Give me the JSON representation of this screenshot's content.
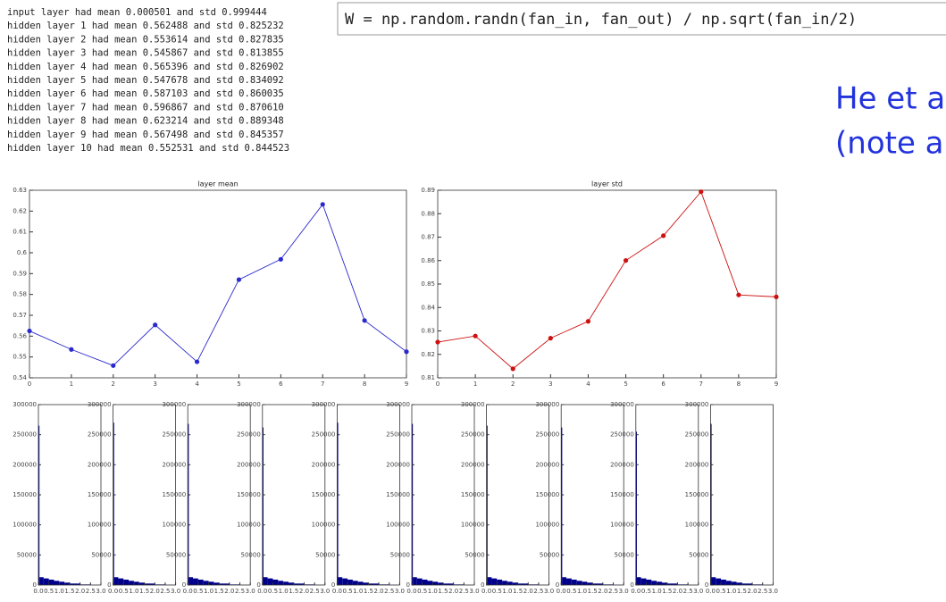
{
  "log": [
    "input layer had mean 0.000501 and std 0.999444",
    "hidden layer 1 had mean 0.562488 and std 0.825232",
    "hidden layer 2 had mean 0.553614 and std 0.827835",
    "hidden layer 3 had mean 0.545867 and std 0.813855",
    "hidden layer 4 had mean 0.565396 and std 0.826902",
    "hidden layer 5 had mean 0.547678 and std 0.834092",
    "hidden layer 6 had mean 0.587103 and std 0.860035",
    "hidden layer 7 had mean 0.596867 and std 0.870610",
    "hidden layer 8 had mean 0.623214 and std 0.889348",
    "hidden layer 9 had mean 0.567498 and std 0.845357",
    "hidden layer 10 had mean 0.552531 and std 0.844523"
  ],
  "code": "W = np.random.randn(fan_in, fan_out) / np.sqrt(fan_in/2)",
  "note": [
    "He et a",
    "(note a"
  ],
  "chart_data": [
    {
      "type": "line",
      "title": "layer mean",
      "x": [
        0,
        1,
        2,
        3,
        4,
        5,
        6,
        7,
        8,
        9
      ],
      "values": [
        0.562488,
        0.553614,
        0.545867,
        0.565396,
        0.547678,
        0.587103,
        0.596867,
        0.623214,
        0.567498,
        0.552531
      ],
      "color": "#2a2acc",
      "xlim": [
        0,
        9
      ],
      "xticks": [
        0,
        1,
        2,
        3,
        4,
        5,
        6,
        7,
        8,
        9
      ],
      "ylim": [
        0.54,
        0.63
      ],
      "yticks": [
        0.54,
        0.55,
        0.56,
        0.57,
        0.58,
        0.59,
        0.6,
        0.61,
        0.62,
        0.63
      ]
    },
    {
      "type": "line",
      "title": "layer std",
      "x": [
        0,
        1,
        2,
        3,
        4,
        5,
        6,
        7,
        8,
        9
      ],
      "values": [
        0.825232,
        0.827835,
        0.813855,
        0.826902,
        0.834092,
        0.860035,
        0.87061,
        0.889348,
        0.845357,
        0.844523
      ],
      "color": "#cc1111",
      "xlim": [
        0,
        9
      ],
      "xticks": [
        0,
        1,
        2,
        3,
        4,
        5,
        6,
        7,
        8,
        9
      ],
      "ylim": [
        0.81,
        0.89
      ],
      "yticks": [
        0.81,
        0.82,
        0.83,
        0.84,
        0.85,
        0.86,
        0.87,
        0.88,
        0.89
      ]
    },
    {
      "type": "histogram",
      "color": "#00008b",
      "bins": [
        0,
        0.05,
        0.25,
        0.5,
        0.75,
        1,
        1.25,
        1.5,
        2,
        2.5,
        3
      ],
      "values": [
        265000,
        13000,
        11000,
        9000,
        7000,
        5500,
        4000,
        2500,
        1000,
        300
      ],
      "xlim": [
        0,
        3
      ],
      "xticks": [
        {
          "value": 0,
          "label": "0.0"
        },
        {
          "value": 0.5,
          "label": "0.5"
        },
        {
          "value": 1,
          "label": "1.0"
        },
        {
          "value": 1.5,
          "label": "1.5"
        },
        {
          "value": 2,
          "label": "2.0"
        },
        {
          "value": 2.5,
          "label": "2.5"
        },
        {
          "value": 3,
          "label": "3.0"
        }
      ],
      "ylim": [
        0,
        300000
      ],
      "yticks": [
        0,
        50000,
        100000,
        150000,
        200000,
        250000,
        300000
      ]
    },
    {
      "type": "histogram",
      "color": "#00008b",
      "bins": [
        0,
        0.05,
        0.25,
        0.5,
        0.75,
        1,
        1.25,
        1.5,
        2,
        2.5,
        3
      ],
      "values": [
        270000,
        13000,
        11000,
        9000,
        7000,
        5500,
        4000,
        2500,
        1000,
        300
      ],
      "xlim": [
        0,
        3
      ],
      "xticks": [
        {
          "value": 0,
          "label": "0.0"
        },
        {
          "value": 0.5,
          "label": "0.5"
        },
        {
          "value": 1,
          "label": "1.0"
        },
        {
          "value": 1.5,
          "label": "1.5"
        },
        {
          "value": 2,
          "label": "2.0"
        },
        {
          "value": 2.5,
          "label": "2.5"
        },
        {
          "value": 3,
          "label": "3.0"
        }
      ],
      "ylim": [
        0,
        300000
      ],
      "yticks": [
        0,
        50000,
        100000,
        150000,
        200000,
        250000,
        300000
      ]
    },
    {
      "type": "histogram",
      "color": "#00008b",
      "bins": [
        0,
        0.05,
        0.25,
        0.5,
        0.75,
        1,
        1.25,
        1.5,
        2,
        2.5,
        3
      ],
      "values": [
        268000,
        13000,
        11000,
        9000,
        7000,
        5500,
        4000,
        2500,
        1000,
        300
      ],
      "xlim": [
        0,
        3
      ],
      "xticks": [
        {
          "value": 0,
          "label": "0.0"
        },
        {
          "value": 0.5,
          "label": "0.5"
        },
        {
          "value": 1,
          "label": "1.0"
        },
        {
          "value": 1.5,
          "label": "1.5"
        },
        {
          "value": 2,
          "label": "2.0"
        },
        {
          "value": 2.5,
          "label": "2.5"
        },
        {
          "value": 3,
          "label": "3.0"
        }
      ],
      "ylim": [
        0,
        300000
      ],
      "yticks": [
        0,
        50000,
        100000,
        150000,
        200000,
        250000,
        300000
      ]
    },
    {
      "type": "histogram",
      "color": "#00008b",
      "bins": [
        0,
        0.05,
        0.25,
        0.5,
        0.75,
        1,
        1.25,
        1.5,
        2,
        2.5,
        3
      ],
      "values": [
        262000,
        13000,
        11000,
        9000,
        7000,
        5500,
        4000,
        2500,
        1000,
        300
      ],
      "xlim": [
        0,
        3
      ],
      "xticks": [
        {
          "value": 0,
          "label": "0.0"
        },
        {
          "value": 0.5,
          "label": "0.5"
        },
        {
          "value": 1,
          "label": "1.0"
        },
        {
          "value": 1.5,
          "label": "1.5"
        },
        {
          "value": 2,
          "label": "2.0"
        },
        {
          "value": 2.5,
          "label": "2.5"
        },
        {
          "value": 3,
          "label": "3.0"
        }
      ],
      "ylim": [
        0,
        300000
      ],
      "yticks": [
        0,
        50000,
        100000,
        150000,
        200000,
        250000,
        300000
      ]
    },
    {
      "type": "histogram",
      "color": "#00008b",
      "bins": [
        0,
        0.05,
        0.25,
        0.5,
        0.75,
        1,
        1.25,
        1.5,
        2,
        2.5,
        3
      ],
      "values": [
        270000,
        13000,
        11000,
        9000,
        7000,
        5500,
        4000,
        2500,
        1000,
        300
      ],
      "xlim": [
        0,
        3
      ],
      "xticks": [
        {
          "value": 0,
          "label": "0.0"
        },
        {
          "value": 0.5,
          "label": "0.5"
        },
        {
          "value": 1,
          "label": "1.0"
        },
        {
          "value": 1.5,
          "label": "1.5"
        },
        {
          "value": 2,
          "label": "2.0"
        },
        {
          "value": 2.5,
          "label": "2.5"
        },
        {
          "value": 3,
          "label": "3.0"
        }
      ],
      "ylim": [
        0,
        300000
      ],
      "yticks": [
        0,
        50000,
        100000,
        150000,
        200000,
        250000,
        300000
      ]
    },
    {
      "type": "histogram",
      "color": "#00008b",
      "bins": [
        0,
        0.05,
        0.25,
        0.5,
        0.75,
        1,
        1.25,
        1.5,
        2,
        2.5,
        3
      ],
      "values": [
        268000,
        13000,
        11000,
        9000,
        7000,
        5500,
        4000,
        2500,
        1000,
        300
      ],
      "xlim": [
        0,
        3
      ],
      "xticks": [
        {
          "value": 0,
          "label": "0.0"
        },
        {
          "value": 0.5,
          "label": "0.5"
        },
        {
          "value": 1,
          "label": "1.0"
        },
        {
          "value": 1.5,
          "label": "1.5"
        },
        {
          "value": 2,
          "label": "2.0"
        },
        {
          "value": 2.5,
          "label": "2.5"
        },
        {
          "value": 3,
          "label": "3.0"
        }
      ],
      "ylim": [
        0,
        300000
      ],
      "yticks": [
        0,
        50000,
        100000,
        150000,
        200000,
        250000,
        300000
      ]
    },
    {
      "type": "histogram",
      "color": "#00008b",
      "bins": [
        0,
        0.05,
        0.25,
        0.5,
        0.75,
        1,
        1.25,
        1.5,
        2,
        2.5,
        3
      ],
      "values": [
        265000,
        13000,
        11000,
        9000,
        7000,
        5500,
        4000,
        2500,
        1000,
        300
      ],
      "xlim": [
        0,
        3
      ],
      "xticks": [
        {
          "value": 0,
          "label": "0.0"
        },
        {
          "value": 0.5,
          "label": "0.5"
        },
        {
          "value": 1,
          "label": "1.0"
        },
        {
          "value": 1.5,
          "label": "1.5"
        },
        {
          "value": 2,
          "label": "2.0"
        },
        {
          "value": 2.5,
          "label": "2.5"
        },
        {
          "value": 3,
          "label": "3.0"
        }
      ],
      "ylim": [
        0,
        300000
      ],
      "yticks": [
        0,
        50000,
        100000,
        150000,
        200000,
        250000,
        300000
      ]
    },
    {
      "type": "histogram",
      "color": "#00008b",
      "bins": [
        0,
        0.05,
        0.25,
        0.5,
        0.75,
        1,
        1.25,
        1.5,
        2,
        2.5,
        3
      ],
      "values": [
        262000,
        13000,
        11000,
        9000,
        7000,
        5500,
        4000,
        2500,
        1000,
        300
      ],
      "xlim": [
        0,
        3
      ],
      "xticks": [
        {
          "value": 0,
          "label": "0.0"
        },
        {
          "value": 0.5,
          "label": "0.5"
        },
        {
          "value": 1,
          "label": "1.0"
        },
        {
          "value": 1.5,
          "label": "1.5"
        },
        {
          "value": 2,
          "label": "2.0"
        },
        {
          "value": 2.5,
          "label": "2.5"
        },
        {
          "value": 3,
          "label": "3.0"
        }
      ],
      "ylim": [
        0,
        300000
      ],
      "yticks": [
        0,
        50000,
        100000,
        150000,
        200000,
        250000,
        300000
      ]
    },
    {
      "type": "histogram",
      "color": "#00008b",
      "bins": [
        0,
        0.05,
        0.25,
        0.5,
        0.75,
        1,
        1.25,
        1.5,
        2,
        2.5,
        3
      ],
      "values": [
        255000,
        13000,
        11000,
        9000,
        7000,
        5500,
        4000,
        2500,
        1000,
        300
      ],
      "xlim": [
        0,
        3
      ],
      "xticks": [
        {
          "value": 0,
          "label": "0.0"
        },
        {
          "value": 0.5,
          "label": "0.5"
        },
        {
          "value": 1,
          "label": "1.0"
        },
        {
          "value": 1.5,
          "label": "1.5"
        },
        {
          "value": 2,
          "label": "2.0"
        },
        {
          "value": 2.5,
          "label": "2.5"
        },
        {
          "value": 3,
          "label": "3.0"
        }
      ],
      "ylim": [
        0,
        300000
      ],
      "yticks": [
        0,
        50000,
        100000,
        150000,
        200000,
        250000,
        300000
      ]
    },
    {
      "type": "histogram",
      "color": "#00008b",
      "bins": [
        0,
        0.05,
        0.25,
        0.5,
        0.75,
        1,
        1.25,
        1.5,
        2,
        2.5,
        3
      ],
      "values": [
        268000,
        13000,
        11000,
        9000,
        7000,
        5500,
        4000,
        2500,
        1000,
        300
      ],
      "xlim": [
        0,
        3
      ],
      "xticks": [
        {
          "value": 0,
          "label": "0.0"
        },
        {
          "value": 0.5,
          "label": "0.5"
        },
        {
          "value": 1,
          "label": "1.0"
        },
        {
          "value": 1.5,
          "label": "1.5"
        },
        {
          "value": 2,
          "label": "2.0"
        },
        {
          "value": 2.5,
          "label": "2.5"
        },
        {
          "value": 3,
          "label": "3.0"
        }
      ],
      "ylim": [
        0,
        300000
      ],
      "yticks": [
        0,
        50000,
        100000,
        150000,
        200000,
        250000,
        300000
      ]
    }
  ]
}
